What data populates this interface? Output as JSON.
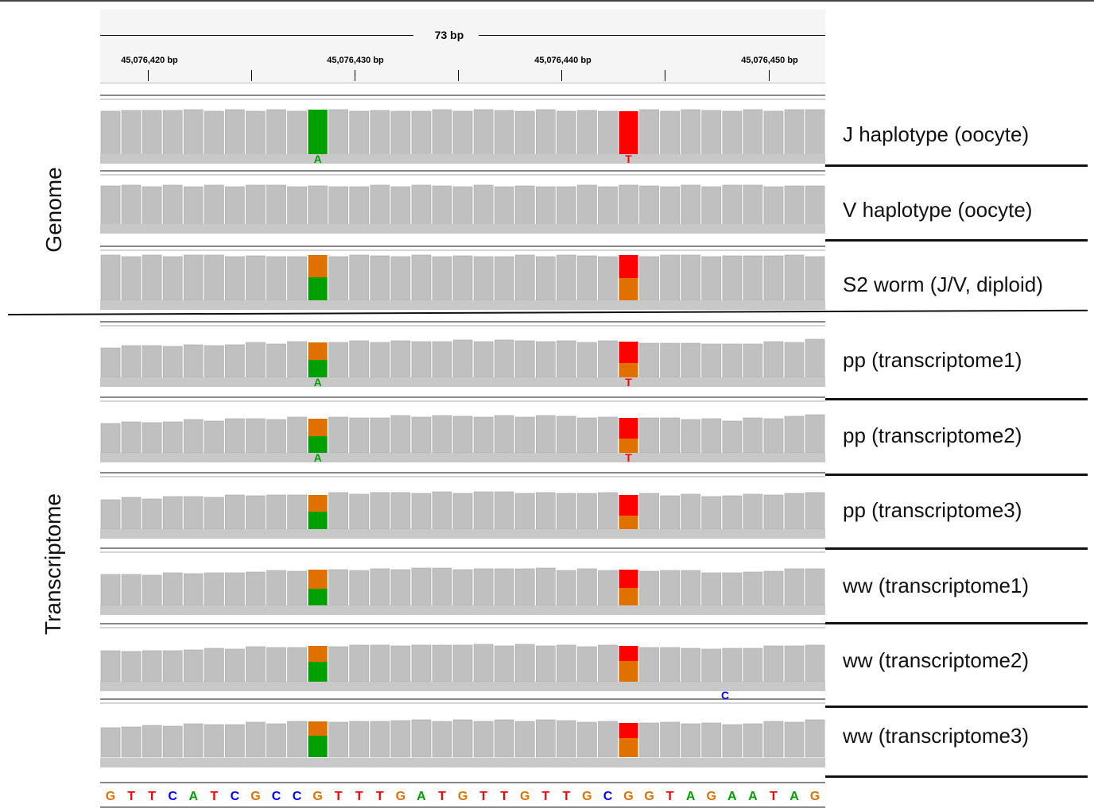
{
  "ruler": {
    "span_label": "73 bp",
    "ticks": [
      {
        "label": "45,076,420 bp"
      },
      {
        "label": "45,076,430 bp"
      },
      {
        "label": "45,076,440 bp"
      },
      {
        "label": "45,076,450 bp"
      }
    ]
  },
  "groups": [
    {
      "label": "Genome"
    },
    {
      "label": "Transcriptome"
    }
  ],
  "colors": {
    "coverage": "#c0c0c0",
    "allele_A": "#00a000",
    "allele_T": "#ff0000",
    "allele_C": "#0000ff",
    "allele_G": "#e07000",
    "read": "#c8c8c8"
  },
  "tracks": [
    {
      "name": "J haplotype (oocyte)",
      "allele1": [
        1.0,
        0
      ],
      "allele2": [
        0,
        1.0
      ],
      "base1": "A",
      "base2": "T"
    },
    {
      "name": "V haplotype (oocyte)",
      "allele1": null,
      "allele2": null,
      "base1": "",
      "base2": ""
    },
    {
      "name": "S2 worm (J/V, diploid)",
      "allele1": [
        0.5,
        0.5
      ],
      "allele2": [
        0.5,
        0.5
      ],
      "base1": "",
      "base2": ""
    },
    {
      "name": "pp (transcriptome1)",
      "allele1": [
        0.5,
        0.5
      ],
      "allele2": [
        0.6,
        0.4
      ],
      "base1": "A",
      "base2": "T"
    },
    {
      "name": "pp (transcriptome2)",
      "allele1": [
        0.48,
        0.52
      ],
      "allele2": [
        0.6,
        0.4
      ],
      "base1": "A",
      "base2": "T"
    },
    {
      "name": "pp (transcriptome3)",
      "allele1": [
        0.5,
        0.5
      ],
      "allele2": [
        0.6,
        0.4
      ],
      "base1": "",
      "base2": ""
    },
    {
      "name": "ww (transcriptome1)",
      "allele1": [
        0.47,
        0.53
      ],
      "allele2": [
        0.52,
        0.48
      ],
      "base1": "",
      "base2": ""
    },
    {
      "name": "ww (transcriptome2)",
      "allele1": [
        0.55,
        0.45
      ],
      "allele2": [
        0.42,
        0.58
      ],
      "base1": "",
      "base2": ""
    },
    {
      "name": "ww (transcriptome3)",
      "allele1": [
        0.6,
        0.4
      ],
      "allele2": [
        0.45,
        0.55
      ],
      "base1": "",
      "base2": ""
    }
  ],
  "extra_read_base": "C",
  "reference_sequence": [
    "G",
    "T",
    "T",
    "C",
    "A",
    "T",
    "C",
    "G",
    "C",
    "C",
    "G",
    "T",
    "T",
    "T",
    "G",
    "A",
    "T",
    "G",
    "T",
    "T",
    "G",
    "T",
    "T",
    "G",
    "C",
    "G",
    "G",
    "T",
    "A",
    "G",
    "A",
    "A",
    "T",
    "A",
    "G"
  ]
}
